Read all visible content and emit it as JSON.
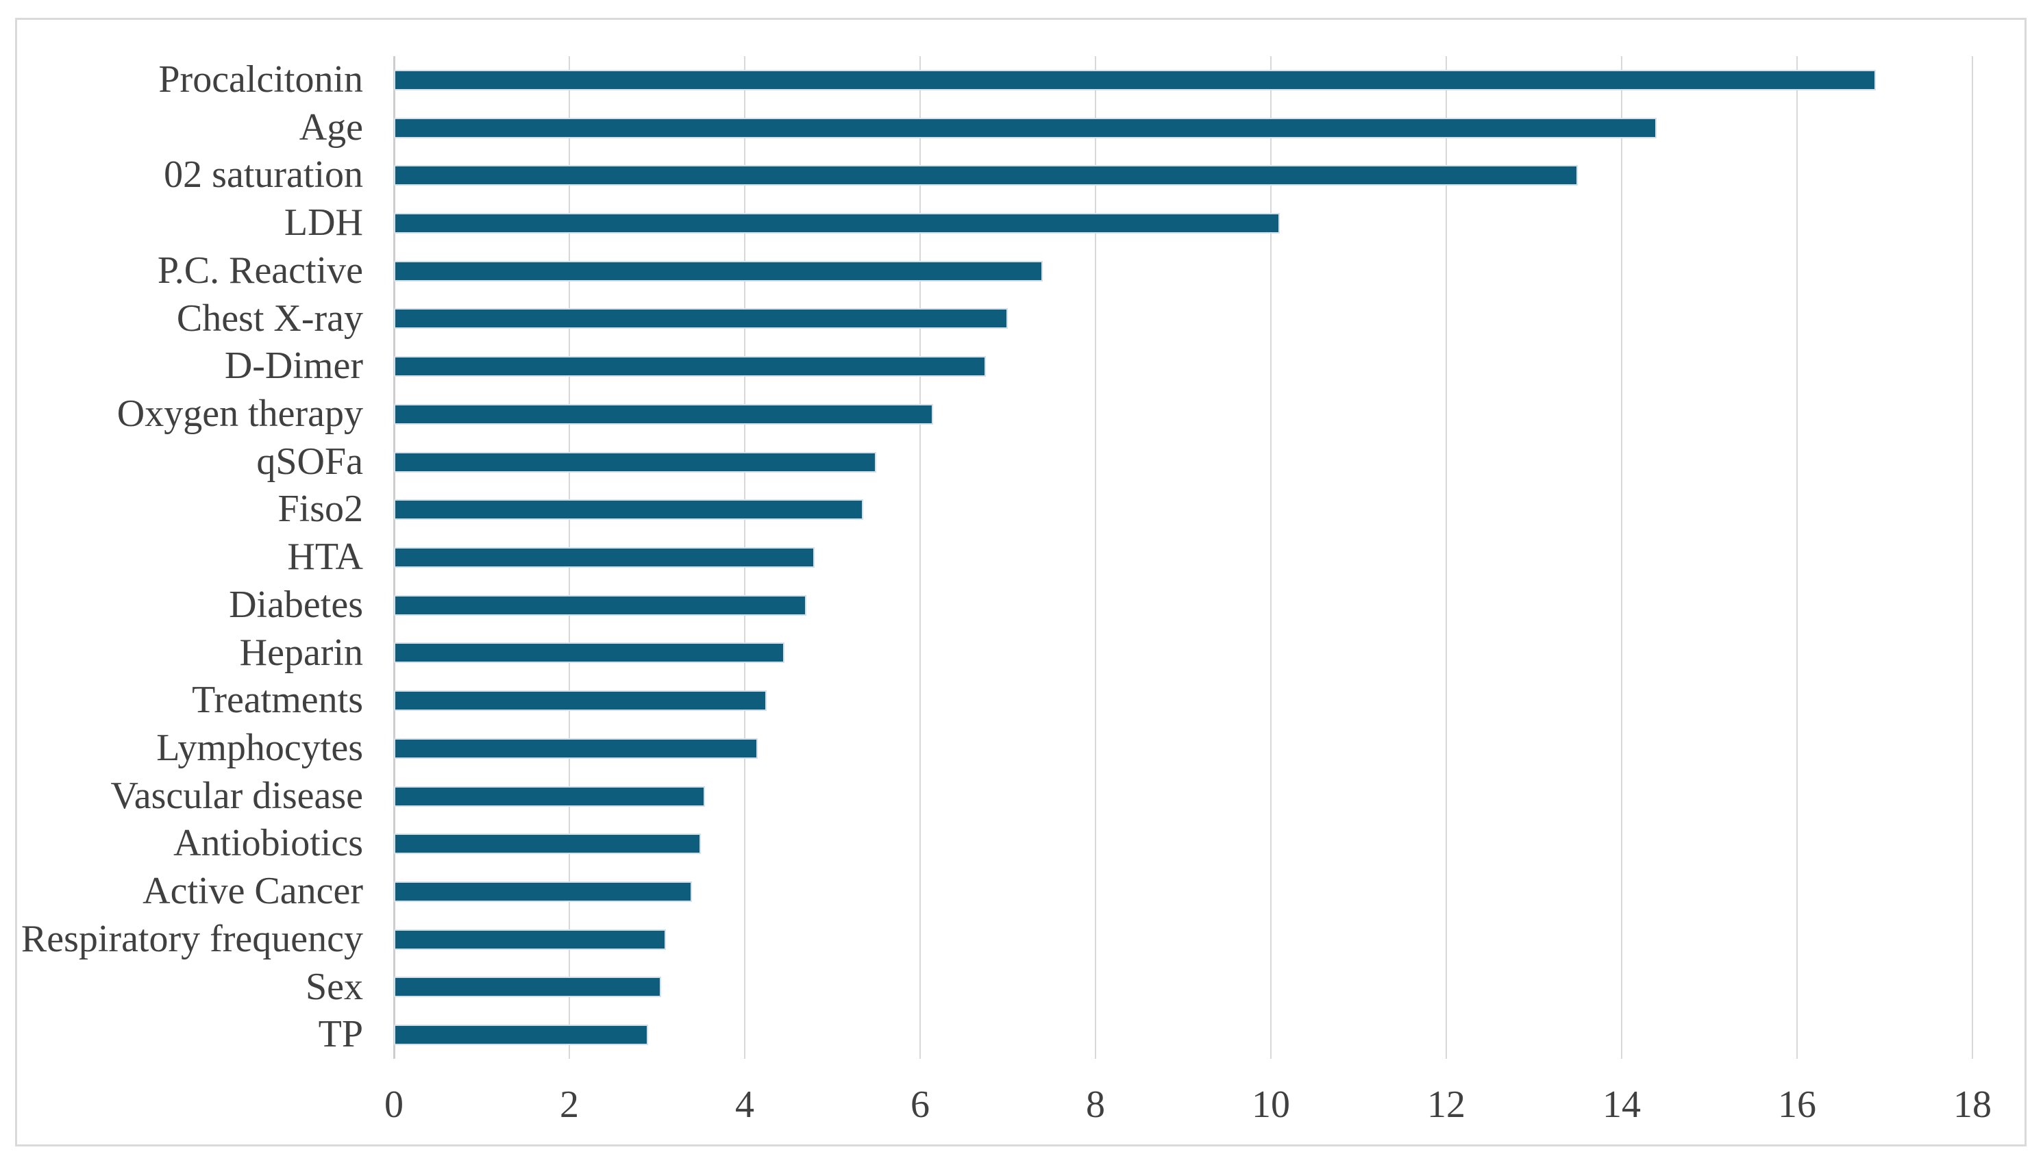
{
  "chart_data": {
    "type": "bar",
    "orientation": "horizontal",
    "title": "",
    "xlabel": "",
    "ylabel": "",
    "categories": [
      "Procalcitonin",
      "Age",
      "02 saturation",
      "LDH",
      "P.C. Reactive",
      "Chest X-ray",
      "D-Dimer",
      "Oxygen therapy",
      "qSOFa",
      "Fiso2",
      "HTA",
      "Diabetes",
      "Heparin",
      "Treatments",
      "Lymphocytes",
      "Vascular disease",
      "Antiobiotics",
      "Active Cancer",
      "Respiratory frequency",
      "Sex",
      "TP"
    ],
    "values": [
      16.9,
      14.4,
      13.5,
      10.1,
      7.4,
      7.0,
      6.75,
      6.15,
      5.5,
      5.35,
      4.8,
      4.7,
      4.45,
      4.25,
      4.15,
      3.55,
      3.5,
      3.4,
      3.1,
      3.05,
      2.9
    ],
    "xlim": [
      0,
      18
    ],
    "x_tick_values": [
      0,
      2,
      4,
      6,
      8,
      10,
      12,
      14,
      16,
      18
    ],
    "x_tick_labels": [
      "0",
      "2",
      "4",
      "6",
      "8",
      "10",
      "12",
      "14",
      "16",
      "18"
    ],
    "grid": true,
    "legend": "none",
    "colors": {
      "bar_fill": "#0E5D7D",
      "bar_border": "#D3E0EA",
      "gridline": "#D8D8D8",
      "axis_line": "#CDCDCD",
      "text": "#404040",
      "chart_border": "#DADADA",
      "background": "#FFFFFF"
    }
  }
}
